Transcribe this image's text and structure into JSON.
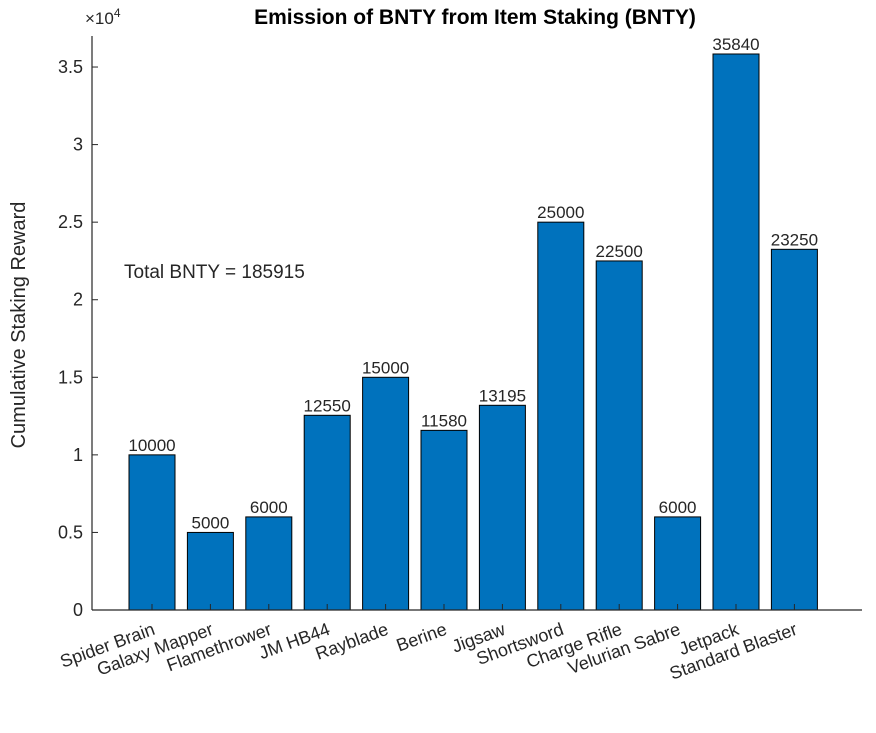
{
  "chart_data": {
    "type": "bar",
    "title": "Emission of BNTY from Item Staking (BNTY)",
    "xlabel": "",
    "ylabel": "Cumulative Staking Reward",
    "categories": [
      "Spider Brain",
      "Galaxy Mapper",
      "Flamethrower",
      "JM HB44",
      "Rayblade",
      "Berine",
      "Jigsaw",
      "Shortsword",
      "Charge Rifle",
      "Velurian Sabre",
      "Jetpack",
      "Standard Blaster"
    ],
    "values": [
      10000,
      5000,
      6000,
      12550,
      15000,
      11580,
      13195,
      25000,
      22500,
      6000,
      35840,
      23250
    ],
    "data_labels": [
      "10000",
      "5000",
      "6000",
      "12550",
      "15000",
      "11580",
      "13195",
      "25000",
      "22500",
      "6000",
      "35840",
      "23250"
    ],
    "ylim": [
      0,
      37000
    ],
    "yticks": [
      0,
      5000,
      10000,
      15000,
      20000,
      25000,
      30000,
      35000
    ],
    "ytick_labels": [
      "0",
      "0.5",
      "1",
      "1.5",
      "2",
      "2.5",
      "3",
      "3.5"
    ],
    "y_exponent_base": "×10",
    "y_exponent_power": "4",
    "annotation": "Total BNTY = 185915",
    "bar_color": "#0072BD",
    "grid": false,
    "legend": "none"
  }
}
